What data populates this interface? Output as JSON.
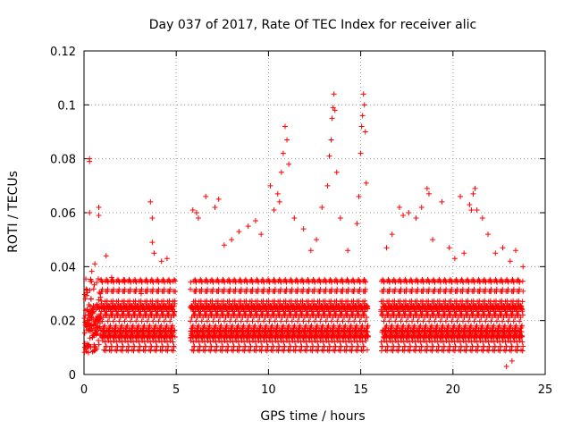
{
  "chart_data": {
    "type": "scatter",
    "title": "Day 037 of 2017, Rate Of TEC Index for receiver alic",
    "xlabel": "GPS time / hours",
    "ylabel": "ROTI / TECUs",
    "xlim": [
      0,
      25
    ],
    "ylim": [
      0,
      0.12
    ],
    "x_ticks": [
      "0",
      "5",
      "10",
      "15",
      "20",
      "25"
    ],
    "y_ticks": [
      "0",
      "0.02",
      "0.04",
      "0.06",
      "0.08",
      "0.1",
      "0.12"
    ],
    "grid": true,
    "marker": "+",
    "marker_color": "#ff0000",
    "data_gap_hours": [
      [
        4.95,
        5.75
      ],
      [
        15.4,
        16.1
      ]
    ],
    "series": [
      {
        "points": [
          [
            0.3,
            0.08
          ],
          [
            0.3,
            0.079
          ],
          [
            0.3,
            0.06
          ],
          [
            0.8,
            0.059
          ],
          [
            0.8,
            0.062
          ],
          [
            1.2,
            0.044
          ],
          [
            1.5,
            0.036
          ],
          [
            2.2,
            0.035
          ],
          [
            3.1,
            0.03
          ],
          [
            3.6,
            0.064
          ],
          [
            3.7,
            0.058
          ],
          [
            3.7,
            0.049
          ],
          [
            3.8,
            0.045
          ],
          [
            4.2,
            0.042
          ],
          [
            4.5,
            0.043
          ],
          [
            5.9,
            0.061
          ],
          [
            6.1,
            0.06
          ],
          [
            6.2,
            0.058
          ],
          [
            6.6,
            0.066
          ],
          [
            7.1,
            0.062
          ],
          [
            7.3,
            0.065
          ],
          [
            7.6,
            0.048
          ],
          [
            8.0,
            0.05
          ],
          [
            8.4,
            0.053
          ],
          [
            8.9,
            0.055
          ],
          [
            9.3,
            0.057
          ],
          [
            9.6,
            0.052
          ],
          [
            10.1,
            0.07
          ],
          [
            10.3,
            0.061
          ],
          [
            10.5,
            0.067
          ],
          [
            10.6,
            0.064
          ],
          [
            10.7,
            0.075
          ],
          [
            10.8,
            0.082
          ],
          [
            10.9,
            0.092
          ],
          [
            11.0,
            0.087
          ],
          [
            11.1,
            0.078
          ],
          [
            11.4,
            0.058
          ],
          [
            11.9,
            0.054
          ],
          [
            12.3,
            0.046
          ],
          [
            12.6,
            0.05
          ],
          [
            12.9,
            0.062
          ],
          [
            13.2,
            0.07
          ],
          [
            13.3,
            0.081
          ],
          [
            13.4,
            0.087
          ],
          [
            13.45,
            0.095
          ],
          [
            13.5,
            0.099
          ],
          [
            13.55,
            0.104
          ],
          [
            13.6,
            0.098
          ],
          [
            13.7,
            0.075
          ],
          [
            13.9,
            0.058
          ],
          [
            14.3,
            0.046
          ],
          [
            14.8,
            0.056
          ],
          [
            14.9,
            0.066
          ],
          [
            15.0,
            0.082
          ],
          [
            15.05,
            0.092
          ],
          [
            15.1,
            0.096
          ],
          [
            15.15,
            0.104
          ],
          [
            15.2,
            0.1
          ],
          [
            15.25,
            0.09
          ],
          [
            15.3,
            0.071
          ],
          [
            16.4,
            0.047
          ],
          [
            16.7,
            0.052
          ],
          [
            17.1,
            0.062
          ],
          [
            17.3,
            0.059
          ],
          [
            17.6,
            0.06
          ],
          [
            18.0,
            0.058
          ],
          [
            18.3,
            0.062
          ],
          [
            18.6,
            0.069
          ],
          [
            18.7,
            0.067
          ],
          [
            18.9,
            0.05
          ],
          [
            19.4,
            0.064
          ],
          [
            19.8,
            0.047
          ],
          [
            20.1,
            0.043
          ],
          [
            20.4,
            0.066
          ],
          [
            20.6,
            0.045
          ],
          [
            20.9,
            0.063
          ],
          [
            21.0,
            0.061
          ],
          [
            21.1,
            0.067
          ],
          [
            21.2,
            0.069
          ],
          [
            21.3,
            0.061
          ],
          [
            21.6,
            0.058
          ],
          [
            21.9,
            0.052
          ],
          [
            22.3,
            0.045
          ],
          [
            22.7,
            0.047
          ],
          [
            23.1,
            0.042
          ],
          [
            23.4,
            0.046
          ],
          [
            23.8,
            0.04
          ],
          [
            22.9,
            0.003
          ],
          [
            23.2,
            0.005
          ]
        ]
      }
    ]
  }
}
